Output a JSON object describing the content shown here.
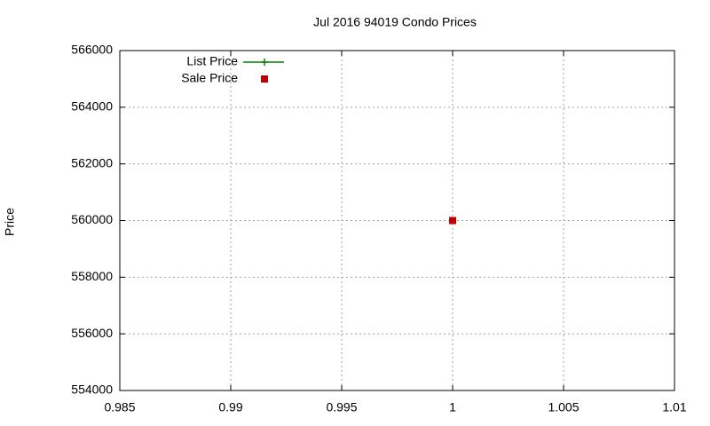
{
  "chart_data": {
    "type": "scatter",
    "title": "Jul 2016 94019 Condo Prices",
    "y_label": "Price",
    "x": [
      1
    ],
    "series": [
      {
        "name": "List Price",
        "color": "#008000",
        "marker": "plus",
        "line": true,
        "values": [
          null
        ]
      },
      {
        "name": "Sale Price",
        "color": "#c00000",
        "marker": "square",
        "line": false,
        "values": [
          560000
        ]
      }
    ],
    "xlim": [
      0.985,
      1.01
    ],
    "xticks": [
      0.985,
      0.99,
      0.995,
      1,
      1.005,
      1.01
    ],
    "ylim": [
      554000,
      566000
    ],
    "yticks": [
      554000,
      556000,
      558000,
      560000,
      562000,
      564000,
      566000
    ],
    "grid": true,
    "legend": "top-left"
  }
}
